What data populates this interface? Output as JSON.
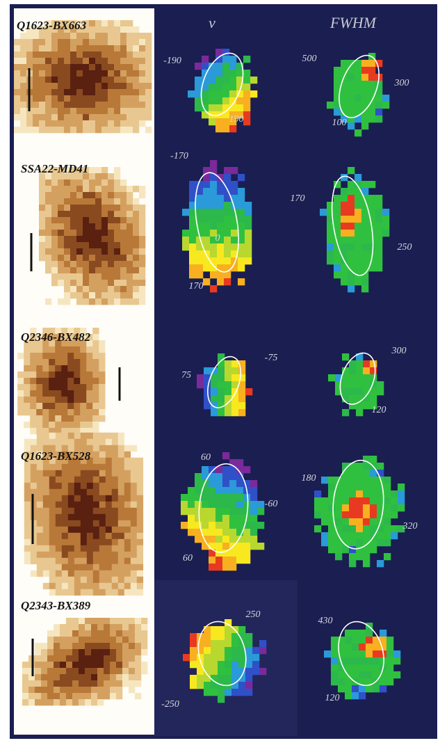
{
  "header": {
    "columns": [
      "v",
      "FWHM"
    ]
  },
  "rows": [
    {
      "name": "Q1623-BX663",
      "v_labels": [
        -190,
        190
      ],
      "fwhm_labels": [
        500,
        300,
        100
      ]
    },
    {
      "name": "SSA22-MD41",
      "v_labels": [
        -170,
        0,
        170
      ],
      "fwhm_labels": [
        170,
        250
      ]
    },
    {
      "name": "Q2346-BX482",
      "v_labels": [
        75,
        -75
      ],
      "fwhm_labels": [
        300,
        120
      ]
    },
    {
      "name": "Q1623-BX528",
      "v_labels": [
        60,
        -60,
        60
      ],
      "fwhm_labels": [
        180,
        320
      ]
    },
    {
      "name": "Q2343-BX389",
      "v_labels": [
        250,
        -250
      ],
      "fwhm_labels": [
        430,
        120
      ]
    }
  ]
}
